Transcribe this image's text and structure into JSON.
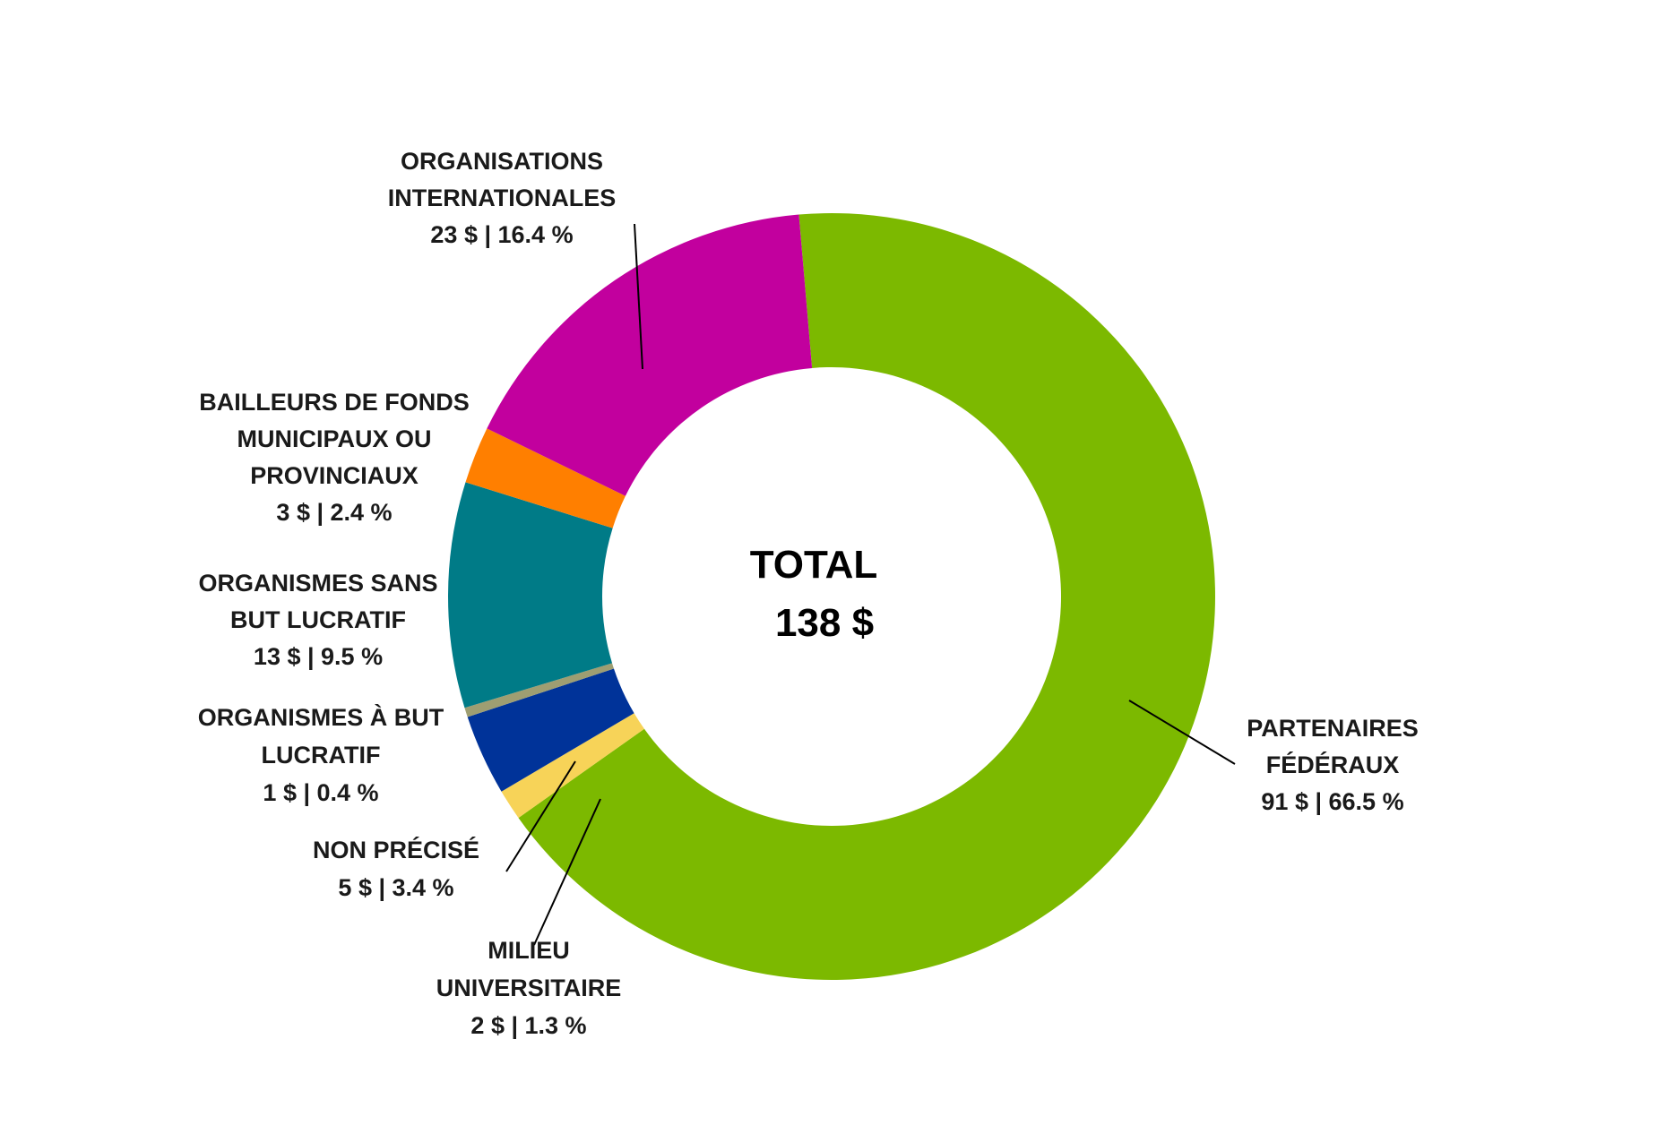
{
  "chart_data": {
    "type": "donut",
    "total_label": "TOTAL",
    "total_value": "138 $",
    "slices": [
      {
        "key": "federaux",
        "label_lines": [
          "PARTENAIRES",
          "FÉDÉRAUX"
        ],
        "value_text": "91 $ | 66.5 %",
        "value": 91,
        "percent": 66.5,
        "color": "#7cb900"
      },
      {
        "key": "universitaire",
        "label_lines": [
          "MILIEU",
          "UNIVERSITAIRE"
        ],
        "value_text": "2 $ | 1.3 %",
        "value": 2,
        "percent": 1.3,
        "color": "#f7d358"
      },
      {
        "key": "non-precise",
        "label_lines": [
          "NON PRÉCISÉ"
        ],
        "value_text": "5 $ | 3.4 %",
        "value": 5,
        "percent": 3.4,
        "color": "#003399"
      },
      {
        "key": "but-lucratif",
        "label_lines": [
          "ORGANISMES À BUT",
          "LUCRATIF"
        ],
        "value_text": "1 $ | 0.4 %",
        "value": 1,
        "percent": 0.4,
        "color": "#9e9e72"
      },
      {
        "key": "sans-but-lucratif",
        "label_lines": [
          "ORGANISMES SANS",
          "BUT LUCRATIF"
        ],
        "value_text": "13 $ | 9.5 %",
        "value": 13,
        "percent": 9.5,
        "color": "#007b87"
      },
      {
        "key": "municipaux",
        "label_lines": [
          "BAILLEURS DE FONDS",
          "MUNICIPAUX OU",
          "PROVINCIAUX"
        ],
        "value_text": "3 $ | 2.4 %",
        "value": 3,
        "percent": 2.4,
        "color": "#ff7f00"
      },
      {
        "key": "internationales",
        "label_lines": [
          "ORGANISATIONS",
          "INTERNATIONALES"
        ],
        "value_text": "23 $ | 16.4 %",
        "value": 23,
        "percent": 16.4,
        "color": "#c2009e"
      }
    ]
  }
}
